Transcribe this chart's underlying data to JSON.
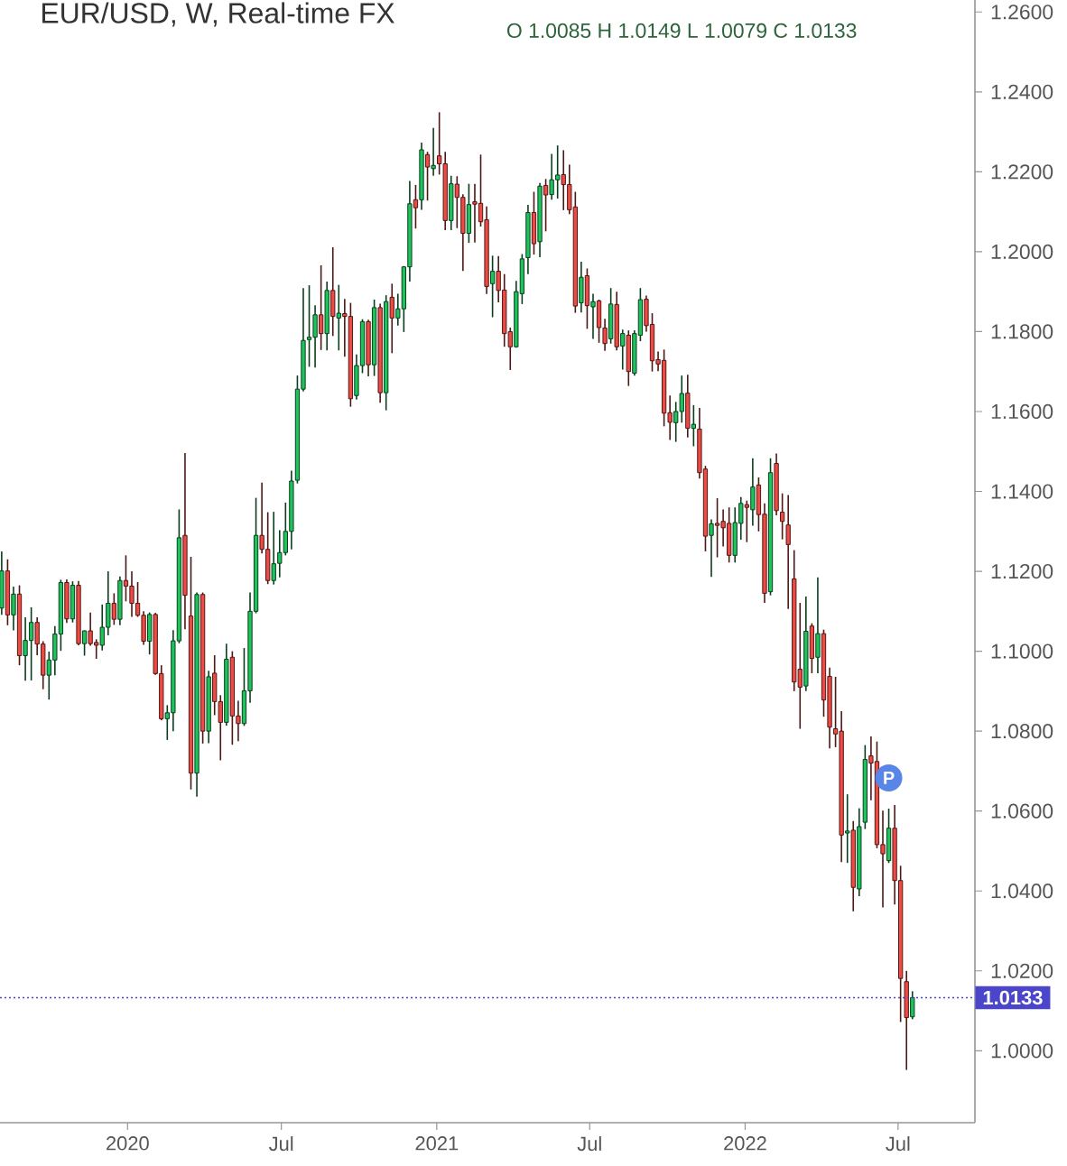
{
  "chart_data": {
    "type": "candlestick",
    "title": "EUR/USD, W, Real-time FX",
    "subtitle": "O 1.0085 H 1.0149 L 1.0079 C 1.0133",
    "x": [
      "2019-08-05",
      "2019-08-12",
      "2019-08-19",
      "2019-08-26",
      "2019-09-02",
      "2019-09-09",
      "2019-09-16",
      "2019-09-23",
      "2019-09-30",
      "2019-10-07",
      "2019-10-14",
      "2019-10-21",
      "2019-10-28",
      "2019-11-04",
      "2019-11-11",
      "2019-11-18",
      "2019-11-25",
      "2019-12-02",
      "2019-12-09",
      "2019-12-16",
      "2019-12-23",
      "2019-12-30",
      "2020-01-06",
      "2020-01-13",
      "2020-01-20",
      "2020-01-27",
      "2020-02-03",
      "2020-02-10",
      "2020-02-17",
      "2020-02-24",
      "2020-03-02",
      "2020-03-09",
      "2020-03-16",
      "2020-03-23",
      "2020-03-30",
      "2020-04-06",
      "2020-04-13",
      "2020-04-20",
      "2020-04-27",
      "2020-05-04",
      "2020-05-11",
      "2020-05-18",
      "2020-05-25",
      "2020-06-01",
      "2020-06-08",
      "2020-06-15",
      "2020-06-22",
      "2020-06-29",
      "2020-07-06",
      "2020-07-13",
      "2020-07-20",
      "2020-07-27",
      "2020-08-03",
      "2020-08-10",
      "2020-08-17",
      "2020-08-24",
      "2020-08-31",
      "2020-09-07",
      "2020-09-14",
      "2020-09-21",
      "2020-09-28",
      "2020-10-05",
      "2020-10-12",
      "2020-10-19",
      "2020-10-26",
      "2020-11-02",
      "2020-11-09",
      "2020-11-16",
      "2020-11-23",
      "2020-11-30",
      "2020-12-07",
      "2020-12-14",
      "2020-12-21",
      "2020-12-28",
      "2021-01-04",
      "2021-01-11",
      "2021-01-18",
      "2021-01-25",
      "2021-02-01",
      "2021-02-08",
      "2021-02-15",
      "2021-02-22",
      "2021-03-01",
      "2021-03-08",
      "2021-03-15",
      "2021-03-22",
      "2021-03-29",
      "2021-04-05",
      "2021-04-12",
      "2021-04-19",
      "2021-04-26",
      "2021-05-03",
      "2021-05-10",
      "2021-05-17",
      "2021-05-24",
      "2021-05-31",
      "2021-06-07",
      "2021-06-14",
      "2021-06-21",
      "2021-06-28",
      "2021-07-05",
      "2021-07-12",
      "2021-07-19",
      "2021-07-26",
      "2021-08-02",
      "2021-08-09",
      "2021-08-16",
      "2021-08-23",
      "2021-08-30",
      "2021-09-06",
      "2021-09-13",
      "2021-09-20",
      "2021-09-27",
      "2021-10-04",
      "2021-10-11",
      "2021-10-18",
      "2021-10-25",
      "2021-11-01",
      "2021-11-08",
      "2021-11-15",
      "2021-11-22",
      "2021-11-29",
      "2021-12-06",
      "2021-12-13",
      "2021-12-20",
      "2021-12-27",
      "2022-01-03",
      "2022-01-10",
      "2022-01-17",
      "2022-01-24",
      "2022-01-31",
      "2022-02-07",
      "2022-02-14",
      "2022-02-21",
      "2022-02-28",
      "2022-03-07",
      "2022-03-14",
      "2022-03-21",
      "2022-03-28",
      "2022-04-04",
      "2022-04-11",
      "2022-04-18",
      "2022-04-25",
      "2022-05-02",
      "2022-05-09",
      "2022-05-16",
      "2022-05-23",
      "2022-05-30",
      "2022-06-06",
      "2022-06-13",
      "2022-06-20",
      "2022-06-27",
      "2022-07-04",
      "2022-07-11",
      "2022-07-18"
    ],
    "ohlc": [
      [
        1.1108,
        1.125,
        1.1091,
        1.1201
      ],
      [
        1.1201,
        1.123,
        1.1065,
        1.1091
      ],
      [
        1.1091,
        1.1162,
        1.1052,
        1.1143
      ],
      [
        1.1143,
        1.1165,
        1.0965,
        1.0989
      ],
      [
        1.0989,
        1.1085,
        1.0926,
        1.1027
      ],
      [
        1.1027,
        1.111,
        1.0927,
        1.1072
      ],
      [
        1.1072,
        1.1085,
        1.099,
        1.1018
      ],
      [
        1.1018,
        1.1025,
        1.0905,
        1.094
      ],
      [
        1.094,
        1.0999,
        1.0879,
        1.0978
      ],
      [
        1.0978,
        1.1063,
        1.094,
        1.1043
      ],
      [
        1.1043,
        1.1179,
        1.1001,
        1.1172
      ],
      [
        1.1172,
        1.118,
        1.1071,
        1.1081
      ],
      [
        1.1081,
        1.1175,
        1.1072,
        1.1165
      ],
      [
        1.1165,
        1.1176,
        1.1015,
        1.1019
      ],
      [
        1.1019,
        1.1052,
        1.0989,
        1.1051
      ],
      [
        1.1051,
        1.1097,
        1.1014,
        1.1019
      ],
      [
        1.1022,
        1.103,
        1.0981,
        1.1015
      ],
      [
        1.1015,
        1.1117,
        1.1002,
        1.106
      ],
      [
        1.106,
        1.12,
        1.104,
        1.112
      ],
      [
        1.112,
        1.1145,
        1.1066,
        1.108
      ],
      [
        1.108,
        1.1187,
        1.1065,
        1.1177
      ],
      [
        1.1177,
        1.124,
        1.1125,
        1.1163
      ],
      [
        1.1163,
        1.12,
        1.1086,
        1.112
      ],
      [
        1.112,
        1.1173,
        1.1086,
        1.109
      ],
      [
        1.109,
        1.11,
        1.1016,
        1.1025
      ],
      [
        1.1025,
        1.1097,
        1.0992,
        1.1092
      ],
      [
        1.1092,
        1.1096,
        1.0941,
        1.0944
      ],
      [
        1.0944,
        1.0965,
        1.0827,
        1.0831
      ],
      [
        1.0831,
        1.0865,
        1.0778,
        1.0846
      ],
      [
        1.0846,
        1.1053,
        1.08,
        1.1026
      ],
      [
        1.1026,
        1.1355,
        1.102,
        1.1284
      ],
      [
        1.129,
        1.1496,
        1.1055,
        1.114
      ],
      [
        1.1088,
        1.1236,
        1.0654,
        1.0695
      ],
      [
        1.0695,
        1.1147,
        1.0636,
        1.1142
      ],
      [
        1.1142,
        1.1147,
        1.0769,
        1.08
      ],
      [
        1.08,
        1.0951,
        1.077,
        1.0936
      ],
      [
        1.0945,
        1.099,
        1.084,
        1.0874
      ],
      [
        1.0874,
        1.089,
        1.0727,
        1.0822
      ],
      [
        1.0822,
        1.1019,
        1.0814,
        1.098
      ],
      [
        1.0985,
        1.1,
        1.0766,
        1.0838
      ],
      [
        1.0838,
        1.0876,
        1.0775,
        1.0819
      ],
      [
        1.0819,
        1.1008,
        1.0813,
        1.0901
      ],
      [
        1.0901,
        1.1147,
        1.0871,
        1.11
      ],
      [
        1.11,
        1.1384,
        1.1095,
        1.129
      ],
      [
        1.129,
        1.1422,
        1.1245,
        1.1255
      ],
      [
        1.1255,
        1.1348,
        1.1168,
        1.1177
      ],
      [
        1.1177,
        1.1349,
        1.1167,
        1.1219
      ],
      [
        1.122,
        1.1303,
        1.1185,
        1.1247
      ],
      [
        1.1247,
        1.1372,
        1.124,
        1.13
      ],
      [
        1.13,
        1.1452,
        1.1255,
        1.1426
      ],
      [
        1.1428,
        1.169,
        1.142,
        1.1656
      ],
      [
        1.1656,
        1.1909,
        1.165,
        1.1778
      ],
      [
        1.178,
        1.1916,
        1.1712,
        1.1786
      ],
      [
        1.1786,
        1.1866,
        1.171,
        1.1842
      ],
      [
        1.1842,
        1.1966,
        1.1754,
        1.1795
      ],
      [
        1.1795,
        1.1925,
        1.1753,
        1.1903
      ],
      [
        1.1903,
        1.2011,
        1.1789,
        1.1838
      ],
      [
        1.1834,
        1.1917,
        1.1753,
        1.1846
      ],
      [
        1.1845,
        1.1882,
        1.1737,
        1.1838
      ],
      [
        1.1838,
        1.1872,
        1.1612,
        1.1632
      ],
      [
        1.164,
        1.1743,
        1.163,
        1.1715
      ],
      [
        1.1715,
        1.1831,
        1.1696,
        1.1825
      ],
      [
        1.1825,
        1.183,
        1.1688,
        1.1717
      ],
      [
        1.1717,
        1.188,
        1.1689,
        1.186
      ],
      [
        1.186,
        1.187,
        1.1622,
        1.1647
      ],
      [
        1.1647,
        1.1891,
        1.1603,
        1.1875
      ],
      [
        1.1886,
        1.192,
        1.1746,
        1.1834
      ],
      [
        1.1834,
        1.1895,
        1.1815,
        1.1857
      ],
      [
        1.1857,
        1.1964,
        1.1799,
        1.1962
      ],
      [
        1.1962,
        1.2177,
        1.1925,
        1.212
      ],
      [
        1.213,
        1.2167,
        1.2058,
        1.211
      ],
      [
        1.213,
        1.2273,
        1.2105,
        1.2255
      ],
      [
        1.2243,
        1.225,
        1.2128,
        1.2212
      ],
      [
        1.2208,
        1.231,
        1.219,
        1.2216
      ],
      [
        1.224,
        1.2349,
        1.2193,
        1.222
      ],
      [
        1.222,
        1.225,
        1.2054,
        1.2078
      ],
      [
        1.2078,
        1.219,
        1.2054,
        1.217
      ],
      [
        1.2169,
        1.2189,
        1.2059,
        1.2136
      ],
      [
        1.2136,
        1.2144,
        1.1952,
        1.2046
      ],
      [
        1.2046,
        1.217,
        1.2022,
        1.2118
      ],
      [
        1.2125,
        1.217,
        1.2023,
        1.2119
      ],
      [
        1.2121,
        1.2243,
        1.2063,
        1.2075
      ],
      [
        1.208,
        1.2113,
        1.1894,
        1.1913
      ],
      [
        1.192,
        1.199,
        1.1836,
        1.1951
      ],
      [
        1.1951,
        1.1989,
        1.1873,
        1.1903
      ],
      [
        1.1904,
        1.1944,
        1.1762,
        1.1795
      ],
      [
        1.18,
        1.181,
        1.1704,
        1.1762
      ],
      [
        1.1762,
        1.1927,
        1.176,
        1.19
      ],
      [
        1.1895,
        1.1994,
        1.1869,
        1.1982
      ],
      [
        1.1985,
        1.2117,
        1.1944,
        1.2098
      ],
      [
        1.2098,
        1.215,
        1.1993,
        1.202
      ],
      [
        1.2025,
        1.2172,
        1.1986,
        1.2164
      ],
      [
        1.2166,
        1.2182,
        1.2051,
        1.2142
      ],
      [
        1.2143,
        1.2245,
        1.213,
        1.218
      ],
      [
        1.218,
        1.2266,
        1.2133,
        1.2192
      ],
      [
        1.2193,
        1.2254,
        1.2104,
        1.2168
      ],
      [
        1.2168,
        1.2218,
        1.2094,
        1.2105
      ],
      [
        1.2112,
        1.215,
        1.1847,
        1.1864
      ],
      [
        1.1872,
        1.1975,
        1.1848,
        1.1936
      ],
      [
        1.194,
        1.1958,
        1.1807,
        1.1865
      ],
      [
        1.1862,
        1.1895,
        1.1782,
        1.1875
      ],
      [
        1.1877,
        1.188,
        1.1772,
        1.181
      ],
      [
        1.1809,
        1.1832,
        1.1752,
        1.177
      ],
      [
        1.1782,
        1.1909,
        1.177,
        1.1869
      ],
      [
        1.1868,
        1.19,
        1.1753,
        1.1762
      ],
      [
        1.1764,
        1.1805,
        1.1705,
        1.1795
      ],
      [
        1.1791,
        1.1803,
        1.1664,
        1.17
      ],
      [
        1.1696,
        1.1803,
        1.169,
        1.1795
      ],
      [
        1.1791,
        1.1909,
        1.1776,
        1.188
      ],
      [
        1.1881,
        1.189,
        1.18,
        1.1815
      ],
      [
        1.1818,
        1.1846,
        1.17,
        1.1727
      ],
      [
        1.173,
        1.175,
        1.1701,
        1.1719
      ],
      [
        1.1728,
        1.1755,
        1.1563,
        1.1596
      ],
      [
        1.1597,
        1.164,
        1.1529,
        1.1573
      ],
      [
        1.1572,
        1.1624,
        1.1524,
        1.16
      ],
      [
        1.16,
        1.169,
        1.1572,
        1.1645
      ],
      [
        1.1646,
        1.1692,
        1.1535,
        1.1558
      ],
      [
        1.1558,
        1.1616,
        1.1513,
        1.1568
      ],
      [
        1.1556,
        1.1609,
        1.1432,
        1.1447
      ],
      [
        1.1456,
        1.1464,
        1.125,
        1.1288
      ],
      [
        1.129,
        1.133,
        1.1186,
        1.1319
      ],
      [
        1.132,
        1.1383,
        1.1235,
        1.1315
      ],
      [
        1.1325,
        1.1355,
        1.1262,
        1.1309
      ],
      [
        1.132,
        1.136,
        1.1222,
        1.124
      ],
      [
        1.124,
        1.136,
        1.1222,
        1.1322
      ],
      [
        1.132,
        1.1386,
        1.1279,
        1.137
      ],
      [
        1.1367,
        1.1377,
        1.1273,
        1.136
      ],
      [
        1.1354,
        1.1483,
        1.1314,
        1.1411
      ],
      [
        1.1416,
        1.1435,
        1.13,
        1.1342
      ],
      [
        1.1343,
        1.137,
        1.1121,
        1.1145
      ],
      [
        1.1149,
        1.1483,
        1.114,
        1.1447
      ],
      [
        1.147,
        1.1495,
        1.134,
        1.1352
      ],
      [
        1.1348,
        1.1395,
        1.128,
        1.1325
      ],
      [
        1.1316,
        1.1391,
        1.1106,
        1.1267
      ],
      [
        1.1181,
        1.1253,
        1.09,
        1.0923
      ],
      [
        1.0955,
        1.1121,
        1.0806,
        1.091
      ],
      [
        1.0913,
        1.1137,
        1.09,
        1.105
      ],
      [
        1.1063,
        1.107,
        1.0945,
        1.0982
      ],
      [
        1.0985,
        1.1185,
        1.0945,
        1.1044
      ],
      [
        1.1044,
        1.1054,
        1.0836,
        1.0878
      ],
      [
        1.0937,
        1.0959,
        1.0757,
        1.081
      ],
      [
        1.0806,
        1.0936,
        1.076,
        1.0793
      ],
      [
        1.08,
        1.085,
        1.0472,
        1.054
      ],
      [
        1.0545,
        1.0642,
        1.047,
        1.055
      ],
      [
        1.0552,
        1.0575,
        1.0349,
        1.0409
      ],
      [
        1.0405,
        1.0607,
        1.0387,
        1.0561
      ],
      [
        1.0572,
        1.0765,
        1.0555,
        1.0729
      ],
      [
        1.0738,
        1.0787,
        1.0627,
        1.072
      ],
      [
        1.0724,
        1.0774,
        1.0507,
        1.0516
      ],
      [
        1.0516,
        1.0601,
        1.0359,
        1.0493
      ],
      [
        1.0476,
        1.0606,
        1.047,
        1.0557
      ],
      [
        1.0557,
        1.0615,
        1.0366,
        1.0426
      ],
      [
        1.0426,
        1.0463,
        1.0072,
        1.0181
      ],
      [
        1.0173,
        1.02,
        0.9952,
        1.0083
      ],
      [
        1.0085,
        1.0149,
        1.0079,
        1.0133
      ]
    ],
    "colors": [
      "#1fc35c",
      "#ef4b44",
      "#1fc35c",
      "#ef4b44",
      "#1fc35c",
      "#1fc35c",
      "#ef4b44",
      "#ef4b44",
      "#1fc35c",
      "#1fc35c",
      "#1fc35c",
      "#ef4b44",
      "#1fc35c",
      "#ef4b44",
      "#1fc35c",
      "#ef4b44",
      "#ef4b44",
      "#1fc35c",
      "#1fc35c",
      "#ef4b44",
      "#1fc35c",
      "#ef4b44",
      "#ef4b44",
      "#ef4b44",
      "#ef4b44",
      "#1fc35c",
      "#ef4b44",
      "#ef4b44",
      "#1fc35c",
      "#1fc35c",
      "#1fc35c",
      "#ef4b44",
      "#ef4b44",
      "#1fc35c",
      "#ef4b44",
      "#1fc35c",
      "#ef4b44",
      "#ef4b44",
      "#1fc35c",
      "#ef4b44",
      "#ef4b44",
      "#1fc35c",
      "#1fc35c",
      "#1fc35c",
      "#ef4b44",
      "#ef4b44",
      "#1fc35c",
      "#1fc35c",
      "#1fc35c",
      "#1fc35c",
      "#1fc35c",
      "#1fc35c",
      "#1fc35c",
      "#1fc35c",
      "#ef4b44",
      "#1fc35c",
      "#ef4b44",
      "#1fc35c",
      "#ef4b44",
      "#ef4b44",
      "#1fc35c",
      "#1fc35c",
      "#ef4b44",
      "#1fc35c",
      "#ef4b44",
      "#1fc35c",
      "#ef4b44",
      "#1fc35c",
      "#1fc35c",
      "#1fc35c",
      "#ef4b44",
      "#1fc35c",
      "#ef4b44",
      "#1fc35c",
      "#ef4b44",
      "#ef4b44",
      "#1fc35c",
      "#ef4b44",
      "#ef4b44",
      "#1fc35c",
      "#ef4b44",
      "#ef4b44",
      "#ef4b44",
      "#1fc35c",
      "#ef4b44",
      "#ef4b44",
      "#ef4b44",
      "#1fc35c",
      "#1fc35c",
      "#1fc35c",
      "#ef4b44",
      "#1fc35c",
      "#ef4b44",
      "#1fc35c",
      "#1fc35c",
      "#ef4b44",
      "#ef4b44",
      "#ef4b44",
      "#1fc35c",
      "#ef4b44",
      "#1fc35c",
      "#ef4b44",
      "#ef4b44",
      "#1fc35c",
      "#ef4b44",
      "#1fc35c",
      "#ef4b44",
      "#1fc35c",
      "#1fc35c",
      "#ef4b44",
      "#ef4b44",
      "#ef4b44",
      "#ef4b44",
      "#ef4b44",
      "#1fc35c",
      "#1fc35c",
      "#ef4b44",
      "#1fc35c",
      "#ef4b44",
      "#ef4b44",
      "#1fc35c",
      "#ef4b44",
      "#ef4b44",
      "#ef4b44",
      "#1fc35c",
      "#1fc35c",
      "#ef4b44",
      "#1fc35c",
      "#ef4b44",
      "#ef4b44",
      "#1fc35c",
      "#ef4b44",
      "#ef4b44",
      "#ef4b44",
      "#ef4b44",
      "#ef4b44",
      "#1fc35c",
      "#ef4b44",
      "#1fc35c",
      "#ef4b44",
      "#ef4b44",
      "#ef4b44",
      "#ef4b44",
      "#1fc35c",
      "#ef4b44",
      "#1fc35c",
      "#1fc35c",
      "#ef4b44",
      "#ef4b44",
      "#ef4b44",
      "#1fc35c",
      "#ef4b44",
      "#ef4b44",
      "#ef4b44",
      "#1fc35c"
    ],
    "xlim": [
      "2019-08-03",
      "2022-09-30"
    ],
    "ylim": [
      0.982,
      1.263
    ],
    "xticks": [
      {
        "value": "2020-01-01",
        "label": "2020"
      },
      {
        "value": "2020-07-01",
        "label": "Jul"
      },
      {
        "value": "2021-01-01",
        "label": "2021"
      },
      {
        "value": "2021-07-01",
        "label": "Jul"
      },
      {
        "value": "2022-01-01",
        "label": "2022"
      },
      {
        "value": "2022-07-01",
        "label": "Jul"
      }
    ],
    "yticks": [
      {
        "value": 1.0,
        "label": "1.0000"
      },
      {
        "value": 1.02,
        "label": "1.0200"
      },
      {
        "value": 1.04,
        "label": "1.0400"
      },
      {
        "value": 1.06,
        "label": "1.0600"
      },
      {
        "value": 1.08,
        "label": "1.0800"
      },
      {
        "value": 1.1,
        "label": "1.1000"
      },
      {
        "value": 1.12,
        "label": "1.1200"
      },
      {
        "value": 1.14,
        "label": "1.1400"
      },
      {
        "value": 1.16,
        "label": "1.1600"
      },
      {
        "value": 1.18,
        "label": "1.1800"
      },
      {
        "value": 1.2,
        "label": "1.2000"
      },
      {
        "value": 1.22,
        "label": "1.2200"
      },
      {
        "value": 1.24,
        "label": "1.2400"
      },
      {
        "value": 1.26,
        "label": "1.2600"
      }
    ],
    "ref_lines": [
      {
        "axis": "y",
        "value": 1.0133,
        "label": "1.0133",
        "color": "#4b45c9",
        "line_style": "dotted"
      }
    ],
    "annotations": [
      {
        "text": "P",
        "x": "2022-06-20",
        "y": 1.0683
      }
    ]
  }
}
